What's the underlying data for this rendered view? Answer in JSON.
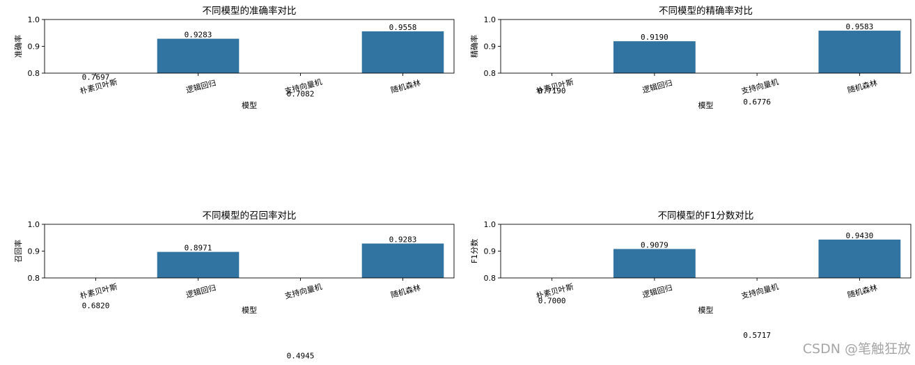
{
  "chart_data": [
    {
      "type": "bar",
      "title": "不同模型的准确率对比",
      "xlabel": "模型",
      "ylabel": "准确率",
      "categories": [
        "朴素贝叶斯",
        "逻辑回归",
        "支持向量机",
        "随机森林"
      ],
      "values": [
        0.7697,
        0.9283,
        0.7082,
        0.9558
      ],
      "value_labels": [
        "0.7697",
        "0.9283",
        "0.7082",
        "0.9558"
      ],
      "ylim": [
        0.8,
        1.0
      ],
      "yticks": [
        "0.8",
        "0.9",
        "1.0"
      ],
      "grid": false,
      "bar_color": "#3274a1"
    },
    {
      "type": "bar",
      "title": "不同模型的精确率对比",
      "xlabel": "模型",
      "ylabel": "精确率",
      "categories": [
        "朴素贝叶斯",
        "逻辑回归",
        "支持向量机",
        "随机森林"
      ],
      "values": [
        0.719,
        0.919,
        0.6776,
        0.9583
      ],
      "value_labels": [
        "0.7190",
        "0.9190",
        "0.6776",
        "0.9583"
      ],
      "ylim": [
        0.8,
        1.0
      ],
      "yticks": [
        "0.8",
        "0.9",
        "1.0"
      ],
      "grid": false,
      "bar_color": "#3274a1"
    },
    {
      "type": "bar",
      "title": "不同模型的召回率对比",
      "xlabel": "模型",
      "ylabel": "召回率",
      "categories": [
        "朴素贝叶斯",
        "逻辑回归",
        "支持向量机",
        "随机森林"
      ],
      "values": [
        0.682,
        0.8971,
        0.4945,
        0.9283
      ],
      "value_labels": [
        "0.6820",
        "0.8971",
        "0.4945",
        "0.9283"
      ],
      "ylim": [
        0.8,
        1.0
      ],
      "yticks": [
        "0.8",
        "0.9",
        "1.0"
      ],
      "grid": false,
      "bar_color": "#3274a1"
    },
    {
      "type": "bar",
      "title": "不同模型的F1分数对比",
      "xlabel": "模型",
      "ylabel": "F1分数",
      "categories": [
        "朴素贝叶斯",
        "逻辑回归",
        "支持向量机",
        "随机森林"
      ],
      "values": [
        0.7,
        0.9079,
        0.5717,
        0.943
      ],
      "value_labels": [
        "0.7000",
        "0.9079",
        "0.5717",
        "0.9430"
      ],
      "ylim": [
        0.8,
        1.0
      ],
      "yticks": [
        "0.8",
        "0.9",
        "1.0"
      ],
      "grid": false,
      "bar_color": "#3274a1"
    }
  ],
  "watermark": "CSDN @笔触狂放"
}
